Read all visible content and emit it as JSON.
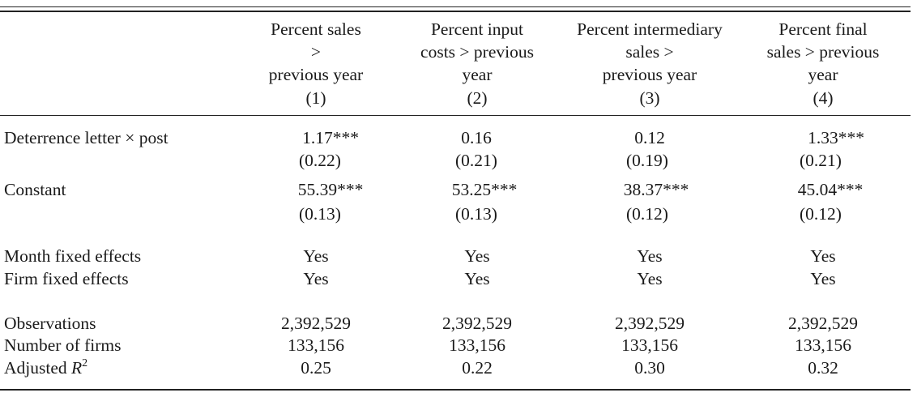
{
  "columns": [
    {
      "lines": [
        "Percent sales",
        ">",
        "previous year"
      ],
      "number": "(1)"
    },
    {
      "lines": [
        "Percent input",
        "costs > previous",
        "year"
      ],
      "number": "(2)"
    },
    {
      "lines": [
        "Percent intermediary",
        "sales >",
        "previous year"
      ],
      "number": "(3)"
    },
    {
      "lines": [
        "Percent final",
        "sales > previous",
        "year"
      ],
      "number": "(4)"
    }
  ],
  "rows": {
    "deterrence": {
      "label": "Deterrence letter × post",
      "coef": [
        "1.17",
        "0.16",
        "0.12",
        "1.33"
      ],
      "stars": [
        "***",
        "",
        "",
        "***"
      ],
      "se": [
        "(0.22)",
        "(0.21)",
        "(0.19)",
        "(0.21)"
      ]
    },
    "constant": {
      "label": "Constant",
      "coef": [
        "55.39",
        "53.25",
        "38.37",
        "45.04"
      ],
      "stars": [
        "***",
        "***",
        "***",
        "***"
      ],
      "se": [
        "(0.13)",
        "(0.13)",
        "(0.12)",
        "(0.12)"
      ]
    },
    "month_fe": {
      "label": "Month fixed effects",
      "values": [
        "Yes",
        "Yes",
        "Yes",
        "Yes"
      ]
    },
    "firm_fe": {
      "label": "Firm fixed effects",
      "values": [
        "Yes",
        "Yes",
        "Yes",
        "Yes"
      ]
    },
    "observations": {
      "label": "Observations",
      "values": [
        "2,392,529",
        "2,392,529",
        "2,392,529",
        "2,392,529"
      ]
    },
    "num_firms": {
      "label": "Number of firms",
      "values": [
        "133,156",
        "133,156",
        "133,156",
        "133,156"
      ]
    },
    "adj_r2": {
      "label_prefix": "Adjusted ",
      "label_var": "R",
      "label_sup": "2",
      "values": [
        "0.25",
        "0.22",
        "0.30",
        "0.32"
      ]
    }
  }
}
